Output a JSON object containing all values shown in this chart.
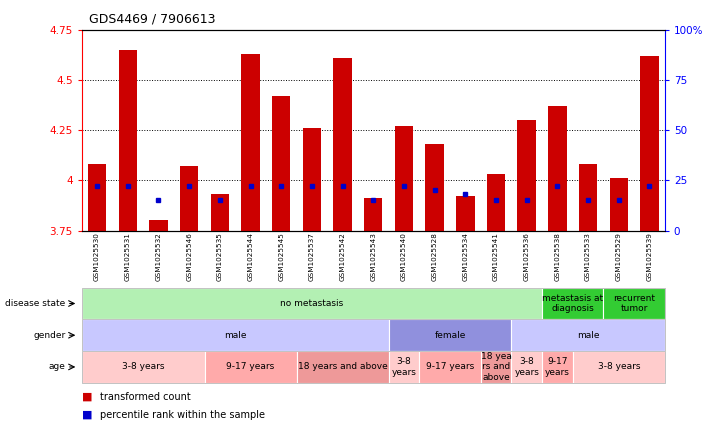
{
  "title": "GDS4469 / 7906613",
  "samples": [
    "GSM1025530",
    "GSM1025531",
    "GSM1025532",
    "GSM1025546",
    "GSM1025535",
    "GSM1025544",
    "GSM1025545",
    "GSM1025537",
    "GSM1025542",
    "GSM1025543",
    "GSM1025540",
    "GSM1025528",
    "GSM1025534",
    "GSM1025541",
    "GSM1025536",
    "GSM1025538",
    "GSM1025533",
    "GSM1025529",
    "GSM1025539"
  ],
  "transformed_count": [
    4.08,
    4.65,
    3.8,
    4.07,
    3.93,
    4.63,
    4.42,
    4.26,
    4.61,
    3.91,
    4.27,
    4.18,
    3.92,
    4.03,
    4.3,
    4.37,
    4.08,
    4.01,
    4.62
  ],
  "percentile_rank": [
    22,
    22,
    15,
    22,
    15,
    22,
    22,
    22,
    22,
    15,
    22,
    20,
    18,
    15,
    15,
    22,
    15,
    15,
    22
  ],
  "ymin": 3.75,
  "ymax": 4.75,
  "yticks": [
    3.75,
    4.0,
    4.25,
    4.5,
    4.75
  ],
  "ytick_labels": [
    "3.75",
    "4",
    "4.25",
    "4.5",
    "4.75"
  ],
  "right_yticks": [
    0,
    25,
    50,
    75,
    100
  ],
  "right_ytick_labels": [
    "0",
    "25",
    "50",
    "75",
    "100%"
  ],
  "bar_color": "#cc0000",
  "dot_color": "#0000cc",
  "disease_state_groups": [
    {
      "label": "no metastasis",
      "start": 0,
      "end": 15,
      "color": "#b3f0b3"
    },
    {
      "label": "metastasis at\ndiagnosis",
      "start": 15,
      "end": 17,
      "color": "#33cc33"
    },
    {
      "label": "recurrent\ntumor",
      "start": 17,
      "end": 19,
      "color": "#33cc33"
    }
  ],
  "gender_groups": [
    {
      "label": "male",
      "start": 0,
      "end": 10,
      "color": "#c8c8ff"
    },
    {
      "label": "female",
      "start": 10,
      "end": 14,
      "color": "#9090dd"
    },
    {
      "label": "male",
      "start": 14,
      "end": 19,
      "color": "#c8c8ff"
    }
  ],
  "age_groups": [
    {
      "label": "3-8 years",
      "start": 0,
      "end": 4,
      "color": "#ffcccc"
    },
    {
      "label": "9-17 years",
      "start": 4,
      "end": 7,
      "color": "#ffaaaa"
    },
    {
      "label": "18 years and above",
      "start": 7,
      "end": 10,
      "color": "#ee9999"
    },
    {
      "label": "3-8\nyears",
      "start": 10,
      "end": 11,
      "color": "#ffcccc"
    },
    {
      "label": "9-17 years",
      "start": 11,
      "end": 13,
      "color": "#ffaaaa"
    },
    {
      "label": "18 yea\nrs and\nabove",
      "start": 13,
      "end": 14,
      "color": "#ee9999"
    },
    {
      "label": "3-8\nyears",
      "start": 14,
      "end": 15,
      "color": "#ffcccc"
    },
    {
      "label": "9-17\nyears",
      "start": 15,
      "end": 16,
      "color": "#ffaaaa"
    },
    {
      "label": "3-8 years",
      "start": 16,
      "end": 19,
      "color": "#ffcccc"
    }
  ],
  "row_labels": [
    "disease state",
    "gender",
    "age"
  ],
  "figsize": [
    7.11,
    4.23
  ],
  "dpi": 100
}
